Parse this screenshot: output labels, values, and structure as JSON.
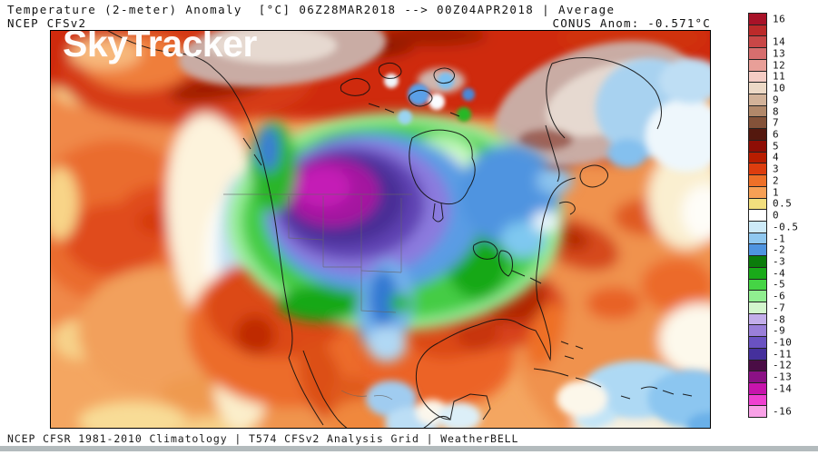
{
  "header": {
    "title": "Temperature (2-meter) Anomaly  [°C] 06Z28MAR2018 --> 00Z04APR2018 | Average",
    "model": "NCEP CFSv2",
    "conus_anom": "CONUS Anom: -0.571°C"
  },
  "watermark": "SkyTracker",
  "footer": {
    "text": "NCEP CFSR 1981-2010 Climatology | T574 CFSv2 Analysis Grid | WeatherBELL"
  },
  "colorbar": {
    "unit": "°C",
    "cells": [
      {
        "label": "16",
        "color": "#a81228"
      },
      {
        "label": "",
        "color": "#bc2a2a"
      },
      {
        "label": "14",
        "color": "#c94747"
      },
      {
        "label": "13",
        "color": "#d76e6e"
      },
      {
        "label": "12",
        "color": "#e89f98"
      },
      {
        "label": "11",
        "color": "#f4ccc4"
      },
      {
        "label": "10",
        "color": "#ecd9c6"
      },
      {
        "label": "9",
        "color": "#d2b299"
      },
      {
        "label": "8",
        "color": "#b1886a"
      },
      {
        "label": "7",
        "color": "#845239"
      },
      {
        "label": "6",
        "color": "#54180e"
      },
      {
        "label": "5",
        "color": "#8e0e05"
      },
      {
        "label": "4",
        "color": "#b81d00"
      },
      {
        "label": "3",
        "color": "#dd3d0e"
      },
      {
        "label": "2",
        "color": "#ee7028"
      },
      {
        "label": "1",
        "color": "#f7a055"
      },
      {
        "label": "0.5",
        "color": "#f2df7e"
      },
      {
        "label": "0",
        "color": "#ffffff"
      },
      {
        "label": "-0.5",
        "color": "#cdeaf8"
      },
      {
        "label": "-1",
        "color": "#90c8f0"
      },
      {
        "label": "-2",
        "color": "#4f94e0"
      },
      {
        "label": "-3",
        "color": "#0b7c0b"
      },
      {
        "label": "-4",
        "color": "#19aa19"
      },
      {
        "label": "-5",
        "color": "#45d445"
      },
      {
        "label": "-6",
        "color": "#90ee90"
      },
      {
        "label": "-7",
        "color": "#d3f6cd"
      },
      {
        "label": "-8",
        "color": "#c3aeea"
      },
      {
        "label": "-9",
        "color": "#9a7fd9"
      },
      {
        "label": "-10",
        "color": "#6a52c2"
      },
      {
        "label": "-11",
        "color": "#45309c"
      },
      {
        "label": "-12",
        "color": "#4a0d45"
      },
      {
        "label": "-13",
        "color": "#8b1185"
      },
      {
        "label": "-14",
        "color": "#c714ac"
      },
      {
        "label": "",
        "color": "#ef40d1"
      },
      {
        "label": "-16",
        "color": "#f9a1e7"
      }
    ]
  },
  "map_data": {
    "type": "filled_contour_map",
    "region": "North America",
    "variable": "2-meter temperature anomaly",
    "unit": "°C",
    "conus_average_anomaly_c": -0.571,
    "features": [
      {
        "area": "Canadian Prairies / Northern Plains",
        "anomaly_c": "-8 to -14",
        "appearance": "purple-magenta cold core"
      },
      {
        "area": "Hudson Bay and central Canada",
        "anomaly_c": "-3 to -7",
        "appearance": "green ring, pale green bay"
      },
      {
        "area": "Quebec / Great Lakes / Northeast",
        "anomaly_c": "-1 to -3",
        "appearance": "blue"
      },
      {
        "area": "Arctic Ocean / Greenland / Baffin",
        "anomaly_c": "+8 to +12",
        "appearance": "gray-brown blobs over dark red"
      },
      {
        "area": "Alaska / Bering",
        "anomaly_c": "+4 to +7",
        "appearance": "bright red with maroon streaks"
      },
      {
        "area": "Southwest US / Mexico / Southeast US",
        "anomaly_c": "+3 to +6",
        "appearance": "orange-red"
      },
      {
        "area": "Northeast Pacific / western Atlantic",
        "anomaly_c": "+1 to +4",
        "appearance": "orange"
      },
      {
        "area": "Caribbean / tropical Atlantic",
        "anomaly_c": "-0.5 to -2",
        "appearance": "light blue"
      },
      {
        "area": "Pacific Northwest coast",
        "anomaly_c": "-0.5 to -1",
        "appearance": "white/cream with light blue"
      }
    ]
  }
}
